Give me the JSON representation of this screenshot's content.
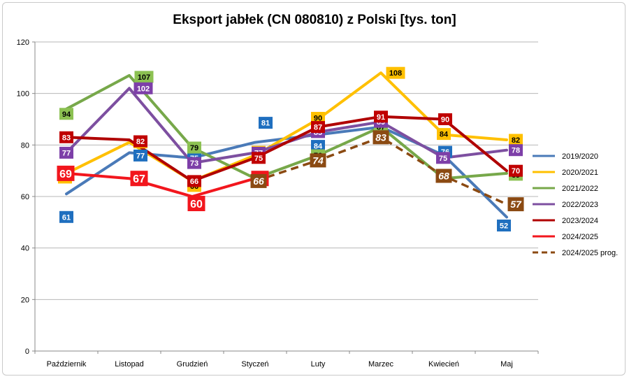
{
  "chart_data": {
    "type": "line",
    "title": "Eksport jabłek (CN 080810) z Polski [tys. ton]",
    "xlabel": "",
    "ylabel": "",
    "ylim": [
      0,
      120
    ],
    "yticks": [
      0,
      20,
      40,
      60,
      80,
      100,
      120
    ],
    "grid": true,
    "legend_position": "right",
    "categories": [
      "Październik",
      "Listopad",
      "Grudzień",
      "Styczeń",
      "Luty",
      "Marzec",
      "Kwiecień",
      "Maj"
    ],
    "series": [
      {
        "name": "2019/2020",
        "color": "#4a7ab8",
        "label_bg": "#1f6fbf",
        "label_fg": "#ffffff",
        "dashed": false,
        "values": [
          61,
          77,
          75,
          81,
          84,
          87,
          76,
          52
        ]
      },
      {
        "name": "2020/2021",
        "color": "#ffc000",
        "label_bg": "#ffc000",
        "label_fg": "#000000",
        "dashed": false,
        "values": [
          69,
          81,
          66,
          76,
          90,
          108,
          84,
          82
        ]
      },
      {
        "name": "2021/2022",
        "color": "#77a84a",
        "label_bg": "#8cc152",
        "label_fg": "#000000",
        "dashed": false,
        "values": [
          94,
          107,
          79,
          67,
          76,
          87,
          67,
          69
        ]
      },
      {
        "name": "2022/2023",
        "color": "#7d4fa0",
        "label_bg": "#7d3fa8",
        "label_fg": "#ffffff",
        "dashed": false,
        "values": [
          77,
          102,
          73,
          77,
          85,
          89,
          75,
          78
        ]
      },
      {
        "name": "2023/2024",
        "color": "#b00000",
        "label_bg": "#c00000",
        "label_fg": "#ffffff",
        "dashed": false,
        "values": [
          83,
          82,
          66,
          75,
          87,
          91,
          90,
          70
        ]
      },
      {
        "name": "2024/2025",
        "color": "#f2161d",
        "label_bg": "#f2161d",
        "label_fg": "#ffffff",
        "dashed": false,
        "values": [
          69,
          67,
          60,
          67,
          null,
          null,
          null,
          null
        ]
      },
      {
        "name": "2024/2025 prog.",
        "color": "#8b4a12",
        "label_bg": "#8b4a12",
        "label_fg": "#ffffff",
        "dashed": true,
        "values": [
          null,
          null,
          null,
          66,
          74,
          83,
          68,
          57
        ]
      }
    ],
    "data_labels": [
      {
        "series": 0,
        "cat": 0,
        "text": "61"
      },
      {
        "series": 0,
        "cat": 1,
        "text": "77"
      },
      {
        "series": 0,
        "cat": 2,
        "text": "75"
      },
      {
        "series": 0,
        "cat": 3,
        "text": "81"
      },
      {
        "series": 0,
        "cat": 4,
        "text": "84"
      },
      {
        "series": 0,
        "cat": 5,
        "text": "87"
      },
      {
        "series": 0,
        "cat": 6,
        "text": "76"
      },
      {
        "series": 0,
        "cat": 7,
        "text": "52"
      },
      {
        "series": 1,
        "cat": 0,
        "text": "69"
      },
      {
        "series": 1,
        "cat": 1,
        "text": "81"
      },
      {
        "series": 1,
        "cat": 2,
        "text": "66"
      },
      {
        "series": 1,
        "cat": 3,
        "text": "76"
      },
      {
        "series": 1,
        "cat": 4,
        "text": "90"
      },
      {
        "series": 1,
        "cat": 5,
        "text": "108"
      },
      {
        "series": 1,
        "cat": 6,
        "text": "84"
      },
      {
        "series": 1,
        "cat": 7,
        "text": "82"
      },
      {
        "series": 2,
        "cat": 0,
        "text": "94"
      },
      {
        "series": 2,
        "cat": 1,
        "text": "107"
      },
      {
        "series": 2,
        "cat": 2,
        "text": "79"
      },
      {
        "series": 2,
        "cat": 4,
        "text": "76"
      },
      {
        "series": 2,
        "cat": 5,
        "text": "87"
      },
      {
        "series": 2,
        "cat": 7,
        "text": "69"
      },
      {
        "series": 3,
        "cat": 0,
        "text": "77"
      },
      {
        "series": 3,
        "cat": 1,
        "text": "102"
      },
      {
        "series": 3,
        "cat": 2,
        "text": "73"
      },
      {
        "series": 3,
        "cat": 3,
        "text": "77"
      },
      {
        "series": 3,
        "cat": 4,
        "text": "85"
      },
      {
        "series": 3,
        "cat": 5,
        "text": "89"
      },
      {
        "series": 3,
        "cat": 6,
        "text": "75"
      },
      {
        "series": 3,
        "cat": 7,
        "text": "78"
      },
      {
        "series": 4,
        "cat": 0,
        "text": "83"
      },
      {
        "series": 4,
        "cat": 1,
        "text": "82"
      },
      {
        "series": 4,
        "cat": 2,
        "text": "66"
      },
      {
        "series": 4,
        "cat": 3,
        "text": "75"
      },
      {
        "series": 4,
        "cat": 4,
        "text": "87"
      },
      {
        "series": 4,
        "cat": 5,
        "text": "91"
      },
      {
        "series": 4,
        "cat": 6,
        "text": "90"
      },
      {
        "series": 4,
        "cat": 7,
        "text": "70"
      },
      {
        "series": 5,
        "cat": 0,
        "text": "69"
      },
      {
        "series": 5,
        "cat": 1,
        "text": "67"
      },
      {
        "series": 5,
        "cat": 2,
        "text": "60"
      },
      {
        "series": 5,
        "cat": 3,
        "text": "67"
      },
      {
        "series": 6,
        "cat": 3,
        "text": "66"
      },
      {
        "series": 6,
        "cat": 4,
        "text": "74"
      },
      {
        "series": 6,
        "cat": 5,
        "text": "83"
      },
      {
        "series": 6,
        "cat": 6,
        "text": "68"
      },
      {
        "series": 6,
        "cat": 7,
        "text": "57"
      }
    ]
  }
}
